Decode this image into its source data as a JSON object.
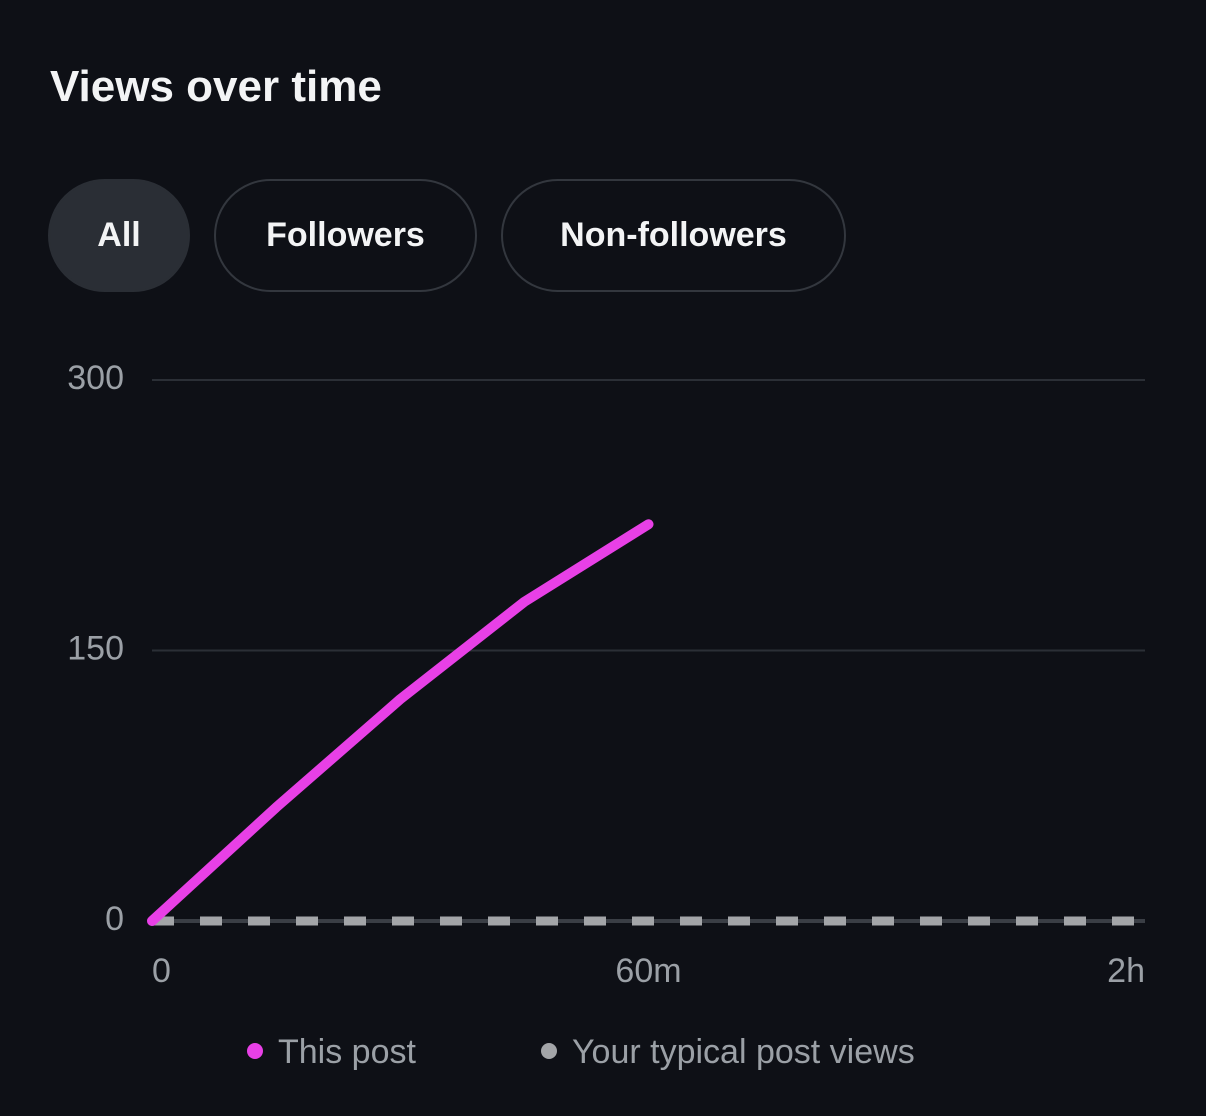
{
  "filters": {
    "options": [
      "All",
      "Followers",
      "Non-followers"
    ],
    "selected_index": 0
  },
  "chart_data": {
    "type": "line",
    "title": "Views over time",
    "series": [
      {
        "name": "This post",
        "color": "#e840e6",
        "style": "solid",
        "x": [
          0,
          15,
          30,
          45,
          60
        ],
        "values": [
          0,
          63,
          123,
          177,
          220
        ]
      },
      {
        "name": "Your typical post views",
        "color": "#a3a5a8",
        "style": "dashed",
        "x": [
          0,
          120
        ],
        "values": [
          0,
          0
        ]
      }
    ],
    "xlim": [
      0,
      120
    ],
    "xticks": [
      0,
      {
        "value": 60,
        "label": "60m"
      },
      {
        "value": 120,
        "label": "2h"
      }
    ],
    "ylim": [
      0,
      300
    ],
    "yticks": [
      0,
      150,
      300
    ],
    "grid": true
  }
}
